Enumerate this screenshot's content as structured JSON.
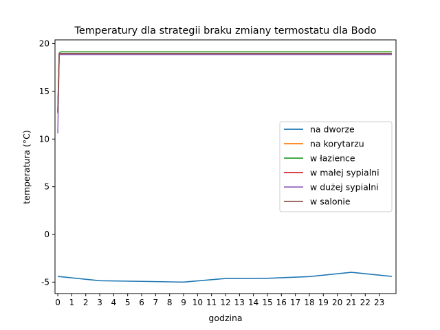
{
  "chart_data": {
    "type": "line",
    "title": "Temperatury dla strategii braku zmiany termostatu dla Bodo",
    "xlabel": "godzina",
    "ylabel": "temperatura (°C)",
    "xlim": [
      -0.2,
      24.2
    ],
    "ylim": [
      -6.2,
      20.4
    ],
    "xticks": [
      0,
      1,
      2,
      3,
      4,
      5,
      6,
      7,
      8,
      9,
      10,
      11,
      12,
      13,
      14,
      15,
      16,
      17,
      18,
      19,
      20,
      21,
      22,
      23
    ],
    "yticks": [
      20,
      15,
      10,
      5,
      0,
      -5
    ],
    "grid": false,
    "legend_position": "center-right",
    "series": [
      {
        "name": "na dworze",
        "color": "#1f77b4",
        "x": [
          0,
          3,
          6,
          9,
          12,
          15,
          18,
          21,
          23.9
        ],
        "y": [
          -4.4,
          -4.85,
          -4.92,
          -5.0,
          -4.62,
          -4.6,
          -4.42,
          -3.97,
          -4.4
        ]
      },
      {
        "name": "na korytarzu",
        "color": "#ff7f0e",
        "x": [
          0,
          0.1,
          23.9
        ],
        "y": [
          12.9,
          18.95,
          18.95
        ]
      },
      {
        "name": "w łazience",
        "color": "#2ca02c",
        "x": [
          0,
          0.1,
          0.2,
          23.9
        ],
        "y": [
          12.9,
          19.0,
          19.15,
          19.15
        ]
      },
      {
        "name": "w małej sypialni",
        "color": "#d62728",
        "x": [
          0,
          0.1,
          23.9
        ],
        "y": [
          12.7,
          18.95,
          18.95
        ]
      },
      {
        "name": "w dużej sypialni",
        "color": "#9467bd",
        "x": [
          0,
          0.1,
          23.9
        ],
        "y": [
          10.6,
          18.85,
          18.85
        ]
      },
      {
        "name": "w salonie",
        "color": "#8c564b",
        "x": [
          0,
          0.1,
          23.9
        ],
        "y": [
          12.8,
          18.98,
          18.98
        ]
      }
    ]
  }
}
